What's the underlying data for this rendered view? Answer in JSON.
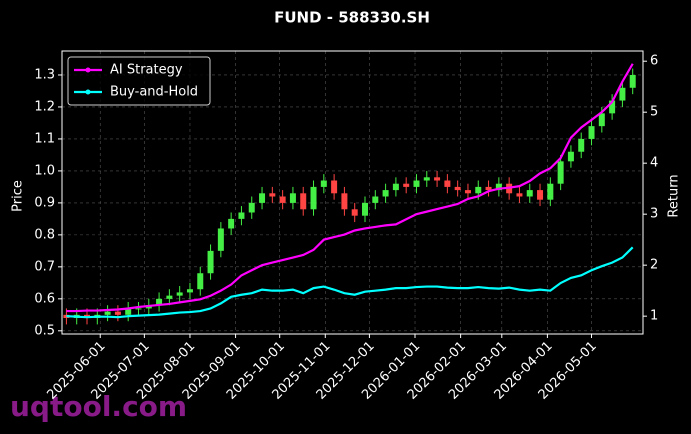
{
  "chart_data": {
    "type": "candlestick",
    "title": "FUND - 588330.SH",
    "watermark": "uqtool.com",
    "y_label": "Price",
    "y2_label": "Return",
    "xlim": [
      "2025-05-06",
      "2026-06-05"
    ],
    "xticks": [
      "2025-06-01",
      "2025-07-01",
      "2025-08-01",
      "2025-09-01",
      "2025-10-01",
      "2025-11-01",
      "2025-12-01",
      "2026-01-01",
      "2026-02-01",
      "2026-03-01",
      "2026-04-01",
      "2026-05-01"
    ],
    "ylim": [
      0.49,
      1.375
    ],
    "yticks": [
      0.5,
      0.6,
      0.7,
      0.8,
      0.9,
      {
        "value": 1,
        "label": "1.0"
      },
      1.1,
      1.2,
      1.3
    ],
    "y2lim": [
      0.65,
      6.2
    ],
    "y2ticks": [
      1,
      2,
      3,
      4,
      5,
      6
    ],
    "grid": true,
    "legend": "upper-left",
    "up_color": "#44ee44",
    "down_color": "#ff4444",
    "x": [
      "2025-05-09",
      "2025-05-16",
      "2025-05-23",
      "2025-05-30",
      "2025-06-06",
      "2025-06-13",
      "2025-06-20",
      "2025-06-27",
      "2025-07-04",
      "2025-07-11",
      "2025-07-18",
      "2025-07-25",
      "2025-08-01",
      "2025-08-08",
      "2025-08-15",
      "2025-08-22",
      "2025-08-29",
      "2025-09-05",
      "2025-09-12",
      "2025-09-19",
      "2025-09-26",
      "2025-10-03",
      "2025-10-10",
      "2025-10-17",
      "2025-10-24",
      "2025-10-31",
      "2025-11-07",
      "2025-11-14",
      "2025-11-21",
      "2025-11-28",
      "2025-12-05",
      "2025-12-12",
      "2025-12-19",
      "2025-12-26",
      "2026-01-02",
      "2026-01-09",
      "2026-01-16",
      "2026-01-23",
      "2026-01-30",
      "2026-02-06",
      "2026-02-13",
      "2026-02-20",
      "2026-02-27",
      "2026-03-06",
      "2026-03-13",
      "2026-03-20",
      "2026-03-27",
      "2026-04-03",
      "2026-04-10",
      "2026-04-17",
      "2026-04-24",
      "2026-05-01",
      "2026-05-08",
      "2026-05-15",
      "2026-05-22",
      "2026-05-29"
    ],
    "open": [
      0.55,
      0.54,
      0.55,
      0.54,
      0.55,
      0.56,
      0.55,
      0.57,
      0.57,
      0.58,
      0.6,
      0.61,
      0.62,
      0.63,
      0.68,
      0.75,
      0.82,
      0.85,
      0.87,
      0.9,
      0.93,
      0.92,
      0.9,
      0.93,
      0.88,
      0.95,
      0.97,
      0.93,
      0.88,
      0.86,
      0.9,
      0.92,
      0.94,
      0.96,
      0.95,
      0.97,
      0.98,
      0.97,
      0.95,
      0.94,
      0.93,
      0.95,
      0.94,
      0.96,
      0.93,
      0.92,
      0.94,
      0.91,
      0.96,
      1.03,
      1.06,
      1.1,
      1.14,
      1.18,
      1.22,
      1.26
    ],
    "high": [
      0.57,
      0.57,
      0.57,
      0.57,
      0.58,
      0.58,
      0.59,
      0.59,
      0.6,
      0.62,
      0.63,
      0.64,
      0.65,
      0.7,
      0.77,
      0.84,
      0.87,
      0.89,
      0.92,
      0.95,
      0.95,
      0.94,
      0.95,
      0.95,
      0.97,
      0.99,
      0.99,
      0.95,
      0.9,
      0.92,
      0.94,
      0.96,
      0.98,
      0.98,
      0.99,
      1.0,
      1.0,
      0.99,
      0.97,
      0.96,
      0.97,
      0.97,
      0.98,
      0.98,
      0.95,
      0.96,
      0.96,
      0.98,
      1.05,
      1.08,
      1.12,
      1.16,
      1.2,
      1.24,
      1.28,
      1.32
    ],
    "low": [
      0.52,
      0.52,
      0.52,
      0.52,
      0.53,
      0.53,
      0.53,
      0.55,
      0.55,
      0.56,
      0.58,
      0.59,
      0.6,
      0.61,
      0.66,
      0.73,
      0.8,
      0.83,
      0.85,
      0.88,
      0.9,
      0.88,
      0.88,
      0.86,
      0.86,
      0.93,
      0.91,
      0.86,
      0.84,
      0.84,
      0.88,
      0.9,
      0.92,
      0.93,
      0.93,
      0.95,
      0.95,
      0.93,
      0.92,
      0.91,
      0.91,
      0.92,
      0.92,
      0.91,
      0.9,
      0.9,
      0.89,
      0.89,
      0.94,
      1.01,
      1.04,
      1.08,
      1.12,
      1.16,
      1.2,
      1.24
    ],
    "close": [
      0.54,
      0.55,
      0.54,
      0.55,
      0.56,
      0.55,
      0.57,
      0.57,
      0.58,
      0.6,
      0.61,
      0.62,
      0.63,
      0.68,
      0.75,
      0.82,
      0.85,
      0.87,
      0.9,
      0.93,
      0.92,
      0.9,
      0.93,
      0.88,
      0.95,
      0.97,
      0.93,
      0.88,
      0.86,
      0.9,
      0.92,
      0.94,
      0.96,
      0.95,
      0.97,
      0.98,
      0.97,
      0.95,
      0.94,
      0.93,
      0.95,
      0.94,
      0.96,
      0.93,
      0.92,
      0.94,
      0.91,
      0.96,
      1.03,
      1.06,
      1.1,
      1.14,
      1.18,
      1.22,
      1.26,
      1.3
    ],
    "series": [
      {
        "name": "AI Strategy",
        "color": "#ff00ff",
        "axis": "y2",
        "values": [
          1.1,
          1.1,
          1.11,
          1.11,
          1.12,
          1.13,
          1.15,
          1.18,
          1.2,
          1.22,
          1.24,
          1.27,
          1.3,
          1.33,
          1.4,
          1.5,
          1.62,
          1.8,
          1.9,
          2.0,
          2.05,
          2.1,
          2.15,
          2.2,
          2.3,
          2.5,
          2.55,
          2.6,
          2.68,
          2.72,
          2.75,
          2.78,
          2.8,
          2.9,
          3.0,
          3.05,
          3.1,
          3.15,
          3.2,
          3.3,
          3.35,
          3.45,
          3.5,
          3.52,
          3.55,
          3.65,
          3.8,
          3.9,
          4.1,
          4.5,
          4.7,
          4.85,
          5.0,
          5.2,
          5.6,
          5.95
        ]
      },
      {
        "name": "Buy-and-Hold",
        "color": "#00ffff",
        "axis": "y2",
        "values": [
          1.0,
          0.99,
          0.98,
          0.99,
          0.99,
          0.98,
          1.0,
          1.01,
          1.02,
          1.03,
          1.05,
          1.07,
          1.08,
          1.1,
          1.15,
          1.25,
          1.38,
          1.42,
          1.45,
          1.52,
          1.5,
          1.5,
          1.52,
          1.45,
          1.55,
          1.58,
          1.52,
          1.45,
          1.42,
          1.48,
          1.5,
          1.52,
          1.55,
          1.55,
          1.57,
          1.58,
          1.58,
          1.56,
          1.55,
          1.55,
          1.57,
          1.55,
          1.54,
          1.56,
          1.52,
          1.5,
          1.52,
          1.5,
          1.65,
          1.75,
          1.8,
          1.9,
          1.98,
          2.05,
          2.15,
          2.35
        ]
      }
    ]
  }
}
